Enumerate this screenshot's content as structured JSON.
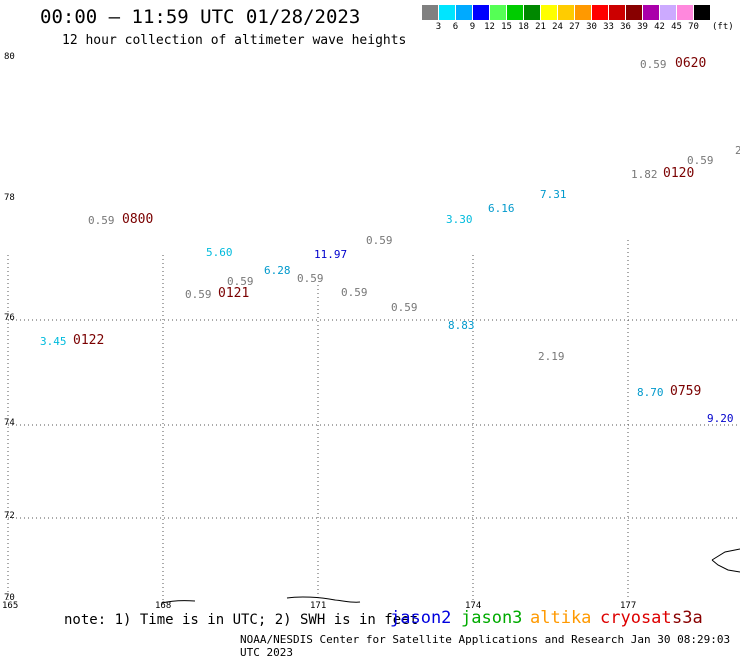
{
  "title": "00:00 – 11:59 UTC 01/28/2023",
  "subtitle": "12 hour collection of altimeter wave heights",
  "legend": {
    "colors": [
      "#808080",
      "#00e5ff",
      "#00aaff",
      "#0000ff",
      "#55ff55",
      "#00cc00",
      "#008800",
      "#ffff00",
      "#ffcc00",
      "#ff9900",
      "#ff0000",
      "#cc0000",
      "#880000",
      "#aa00aa",
      "#ccaaff",
      "#ff88dd",
      "#000000"
    ],
    "labels": [
      "3",
      "6",
      "9",
      "12",
      "15",
      "18",
      "21",
      "24",
      "27",
      "30",
      "33",
      "36",
      "39",
      "42",
      "45",
      "70"
    ],
    "unit": "(ft)"
  },
  "axes": {
    "lat_labels": [
      "80",
      "78",
      "76",
      "74",
      "72",
      "70"
    ],
    "lon_labels": [
      "165",
      "168",
      "171",
      "174",
      "177"
    ]
  },
  "wave_heights": [
    {
      "v": "0.59",
      "c": "#777777"
    },
    {
      "v": "3.45",
      "c": "#00bbdd"
    },
    {
      "v": "5.60",
      "c": "#00bbdd"
    },
    {
      "v": "6.28",
      "c": "#0099cc"
    },
    {
      "v": "0.59",
      "c": "#777777"
    },
    {
      "v": "0.59",
      "c": "#777777"
    },
    {
      "v": "0.59",
      "c": "#777777"
    },
    {
      "v": "11.97",
      "c": "#0000cc"
    },
    {
      "v": "0.59",
      "c": "#777777"
    },
    {
      "v": "0.59",
      "c": "#777777"
    },
    {
      "v": "0.59",
      "c": "#777777"
    },
    {
      "v": "3.30",
      "c": "#00bbdd"
    },
    {
      "v": "6.16",
      "c": "#0099cc"
    },
    {
      "v": "7.31",
      "c": "#0099cc"
    },
    {
      "v": "8.83",
      "c": "#0099cc"
    },
    {
      "v": "2.19",
      "c": "#777777"
    },
    {
      "v": "0.59",
      "c": "#777777"
    },
    {
      "v": "1.82",
      "c": "#777777"
    },
    {
      "v": "0.59",
      "c": "#777777"
    },
    {
      "v": "8.70",
      "c": "#0099cc"
    },
    {
      "v": "9.20",
      "c": "#0000cc"
    },
    {
      "v": "2",
      "c": "#777777"
    }
  ],
  "times": [
    "0800",
    "0122",
    "0121",
    "0620",
    "0120",
    "0759"
  ],
  "note": "note: 1) Time is in UTC; 2) SWH is in feet",
  "satellites": [
    {
      "name": "jason2",
      "color": "#0000dd"
    },
    {
      "name": "jason3",
      "color": "#00aa00"
    },
    {
      "name": "altika",
      "color": "#ff9900"
    },
    {
      "name": "cryosat",
      "color": "#dd0000"
    },
    {
      "name": "s3a",
      "color": "#880000"
    }
  ],
  "credit": "NOAA/NESDIS Center for Satellite Applications and Research   Jan 30 08:29:03 UTC 2023"
}
